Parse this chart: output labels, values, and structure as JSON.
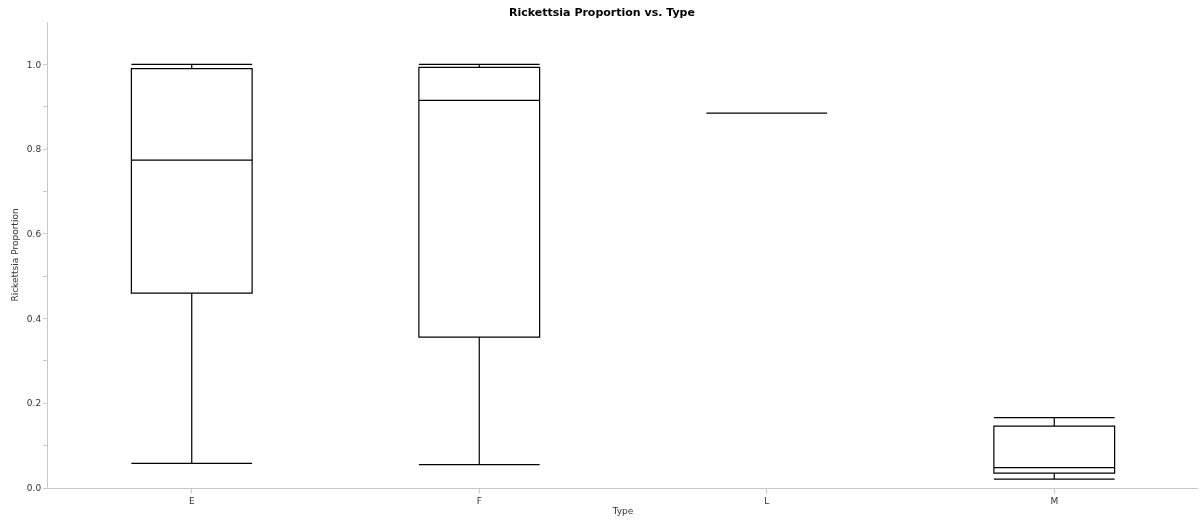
{
  "chart_data": {
    "type": "box",
    "title": "Rickettsia Proportion vs. Type",
    "xlabel": "Type",
    "ylabel": "Rickettsia Proportion",
    "categories": [
      "E",
      "F",
      "L",
      "M"
    ],
    "boxes": [
      {
        "low": 0.058,
        "q1": 0.46,
        "median": 0.774,
        "q3": 0.99,
        "high": 1.0
      },
      {
        "low": 0.055,
        "q1": 0.356,
        "median": 0.915,
        "q3": 0.993,
        "high": 1.0
      },
      {
        "low": 0.885,
        "q1": 0.885,
        "median": 0.885,
        "q3": 0.885,
        "high": 0.885
      },
      {
        "low": 0.021,
        "q1": 0.035,
        "median": 0.048,
        "q3": 0.146,
        "high": 0.166
      }
    ],
    "color": "#000000",
    "ylim": [
      0,
      1.1
    ],
    "yticks": [
      {
        "value": 0,
        "label": "0.0"
      },
      {
        "value": 0.1,
        "label": null
      },
      {
        "value": 0.2,
        "label": "0.2"
      },
      {
        "value": 0.3,
        "label": null
      },
      {
        "value": 0.4,
        "label": "0.4"
      },
      {
        "value": 0.5,
        "label": null
      },
      {
        "value": 0.6,
        "label": "0.6"
      },
      {
        "value": 0.7,
        "label": null
      },
      {
        "value": 0.8,
        "label": "0.8"
      },
      {
        "value": 0.9,
        "label": null
      },
      {
        "value": 1,
        "label": "1.0"
      }
    ]
  }
}
